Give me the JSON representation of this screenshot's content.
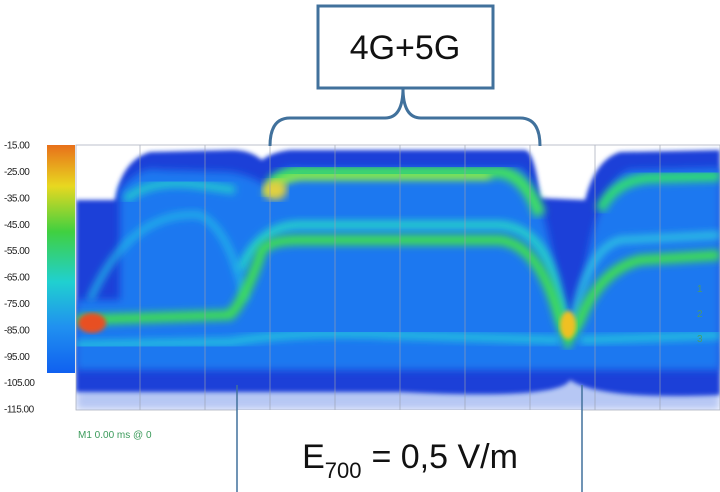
{
  "callout": {
    "label": "4G+5G"
  },
  "y_axis": {
    "labels": [
      "-15.00",
      "-25.00",
      "-35.00",
      "-45.00",
      "-55.00",
      "-65.00",
      "-75.00",
      "-85.00",
      "-95.00",
      "-105.00",
      "-115.00"
    ]
  },
  "marker": {
    "label": "M1 0.00 ms @ 0"
  },
  "traces": [
    "1",
    "2",
    "3"
  ],
  "field_label": {
    "symbol": "E",
    "subscript": "700",
    "text": "= 0,5 V/m"
  }
}
